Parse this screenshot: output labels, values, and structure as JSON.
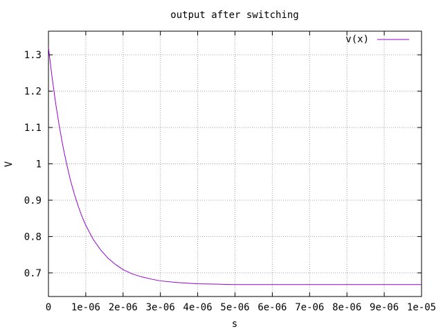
{
  "chart_data": {
    "type": "line",
    "title": "output after switching",
    "xlabel": "s",
    "ylabel": "V",
    "xlim": [
      0,
      1e-05
    ],
    "ylim": [
      0.635,
      1.365
    ],
    "grid": true,
    "legend_position": "top-right",
    "x_ticks": [
      {
        "value": 0,
        "label": "0"
      },
      {
        "value": 1e-06,
        "label": "1e-06"
      },
      {
        "value": 2e-06,
        "label": "2e-06"
      },
      {
        "value": 3e-06,
        "label": "3e-06"
      },
      {
        "value": 4e-06,
        "label": "4e-06"
      },
      {
        "value": 5e-06,
        "label": "5e-06"
      },
      {
        "value": 6e-06,
        "label": "6e-06"
      },
      {
        "value": 7e-06,
        "label": "7e-06"
      },
      {
        "value": 8e-06,
        "label": "8e-06"
      },
      {
        "value": 9e-06,
        "label": "9e-06"
      },
      {
        "value": 1e-05,
        "label": "1e-05"
      }
    ],
    "y_ticks": [
      {
        "value": 0.7,
        "label": "0.7"
      },
      {
        "value": 0.8,
        "label": "0.8"
      },
      {
        "value": 0.9,
        "label": "0.9"
      },
      {
        "value": 1.0,
        "label": "1"
      },
      {
        "value": 1.1,
        "label": "1.1"
      },
      {
        "value": 1.2,
        "label": "1.2"
      },
      {
        "value": 1.3,
        "label": "1.3"
      }
    ],
    "series": [
      {
        "name": "v(x)",
        "color": "#9400d3",
        "x": [
          0,
          1e-07,
          2e-07,
          3e-07,
          4e-07,
          5e-07,
          6e-07,
          7e-07,
          8e-07,
          9e-07,
          1e-06,
          1.2e-06,
          1.4e-06,
          1.6e-06,
          1.8e-06,
          2e-06,
          2.25e-06,
          2.5e-06,
          2.75e-06,
          3e-06,
          3.5e-06,
          4e-06,
          4.5e-06,
          5e-06,
          6e-06,
          7e-06,
          8e-06,
          9e-06,
          1e-05
        ],
        "y": [
          1.32,
          1.236,
          1.162,
          1.098,
          1.042,
          0.994,
          0.951,
          0.915,
          0.883,
          0.855,
          0.831,
          0.792,
          0.763,
          0.74,
          0.723,
          0.709,
          0.697,
          0.689,
          0.683,
          0.678,
          0.673,
          0.67,
          0.669,
          0.668,
          0.668,
          0.668,
          0.668,
          0.668,
          0.668
        ]
      }
    ]
  }
}
